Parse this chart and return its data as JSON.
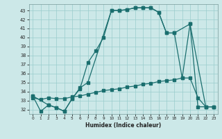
{
  "xlabel": "Humidex (Indice chaleur)",
  "bg_color": "#cce8e8",
  "line_color": "#1a6e6e",
  "grid_color": "#99cccc",
  "xlim": [
    -0.5,
    23.5
  ],
  "ylim": [
    31.5,
    43.7
  ],
  "yticks": [
    32,
    33,
    34,
    35,
    36,
    37,
    38,
    39,
    40,
    41,
    42,
    43
  ],
  "xticks": [
    0,
    1,
    2,
    3,
    4,
    5,
    6,
    7,
    8,
    9,
    10,
    11,
    12,
    13,
    14,
    15,
    16,
    17,
    18,
    19,
    20,
    21,
    22,
    23
  ],
  "line1_x": [
    0,
    1,
    2,
    3,
    4,
    5,
    6,
    7,
    8,
    9,
    10,
    11,
    12,
    13,
    14,
    15,
    16,
    17,
    18,
    20,
    21,
    22,
    23
  ],
  "line1_y": [
    33.5,
    31.8,
    32.5,
    32.2,
    31.8,
    33.2,
    34.3,
    37.2,
    38.5,
    40.0,
    43.0,
    43.0,
    43.1,
    43.3,
    43.3,
    43.3,
    42.8,
    40.5,
    40.5,
    41.5,
    32.3,
    32.3,
    32.3
  ],
  "line2_x": [
    0,
    2,
    3,
    4,
    5,
    6,
    7,
    10,
    11,
    12,
    13,
    14,
    15,
    16,
    17,
    18,
    19,
    20,
    22,
    23
  ],
  "line2_y": [
    33.5,
    32.5,
    32.2,
    31.8,
    33.2,
    34.4,
    35.0,
    43.0,
    43.0,
    43.1,
    43.3,
    43.3,
    43.3,
    42.8,
    40.5,
    40.5,
    35.5,
    41.5,
    32.3,
    32.3
  ],
  "line3_x": [
    0,
    1,
    2,
    3,
    4,
    5,
    6,
    7,
    8,
    9,
    10,
    11,
    12,
    13,
    14,
    15,
    16,
    17,
    18,
    19,
    20,
    21,
    22,
    23
  ],
  "line3_y": [
    33.3,
    33.1,
    33.3,
    33.2,
    33.2,
    33.4,
    33.5,
    33.7,
    33.9,
    34.1,
    34.2,
    34.3,
    34.5,
    34.6,
    34.8,
    34.9,
    35.1,
    35.2,
    35.3,
    35.5,
    35.5,
    33.3,
    32.3,
    32.3
  ]
}
